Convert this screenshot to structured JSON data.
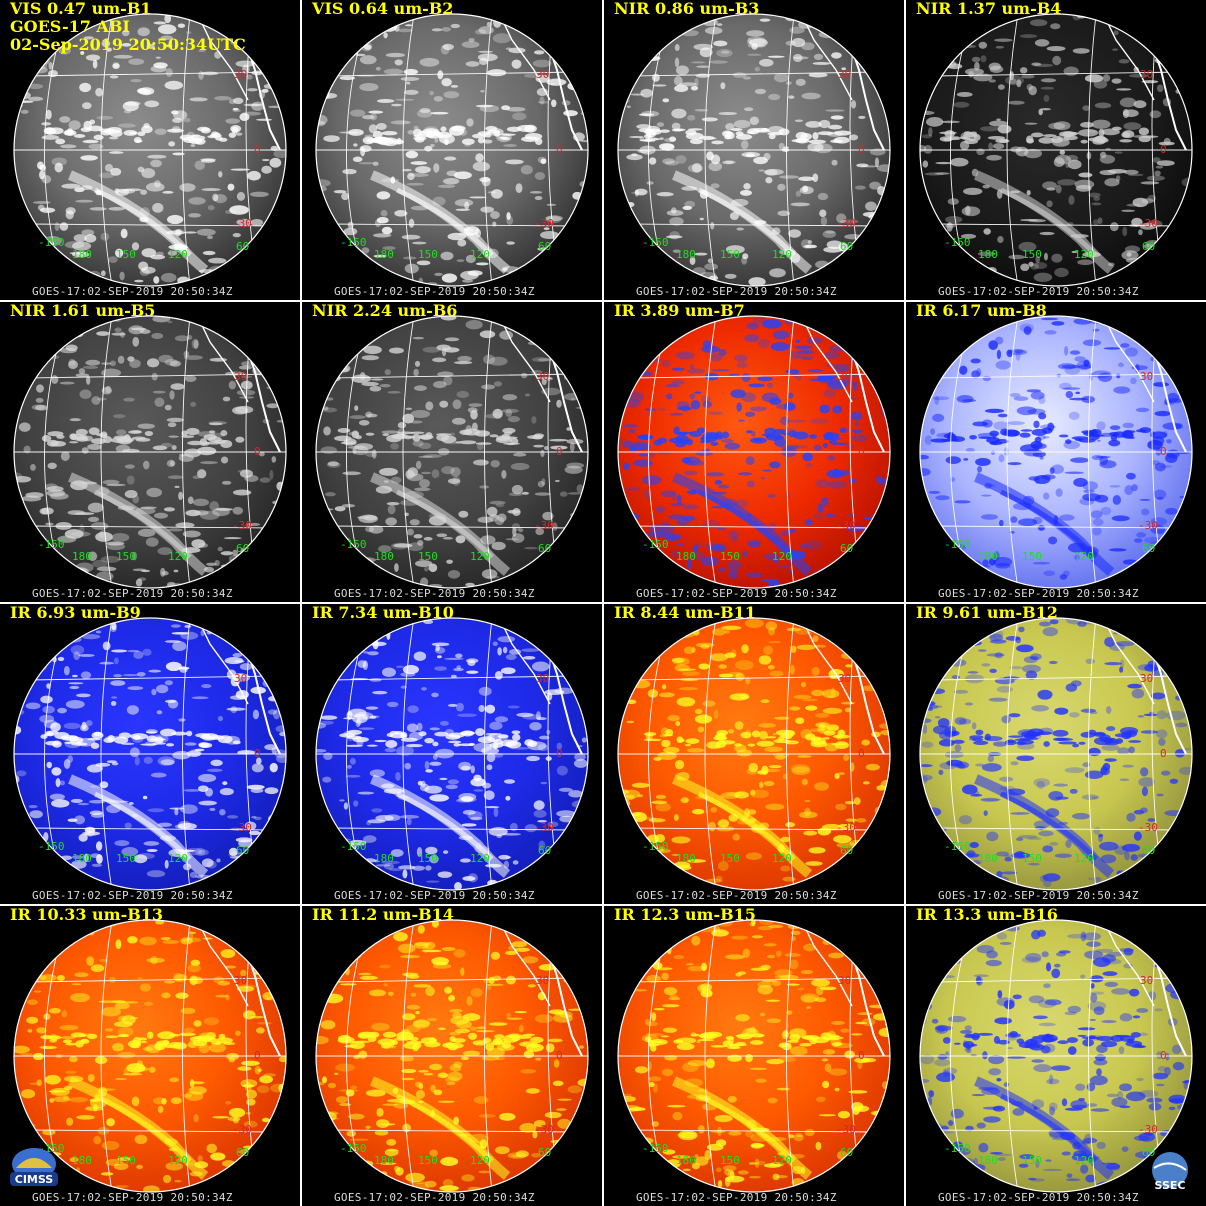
{
  "header": {
    "line2": "GOES-17 ABI",
    "line3": "02-Sep-2019 20:50:34UTC"
  },
  "timestamp": "GOES-17:02-SEP-2019 20:50:34Z",
  "lat_labels": [
    "30",
    "0",
    "-30"
  ],
  "lon_labels": [
    "-150",
    "180",
    "150",
    "120",
    "60"
  ],
  "panels": [
    {
      "label": "VIS 0.47 um-B1",
      "palette": "vis"
    },
    {
      "label": "VIS 0.64 um-B2",
      "palette": "vis"
    },
    {
      "label": "NIR 0.86 um-B3",
      "palette": "vis"
    },
    {
      "label": "NIR 1.37 um-B4",
      "palette": "dark"
    },
    {
      "label": "NIR 1.61 um-B5",
      "palette": "dim"
    },
    {
      "label": "NIR 2.24 um-B6",
      "palette": "dim"
    },
    {
      "label": "IR 3.89 um-B7",
      "palette": "red"
    },
    {
      "label": "IR 6.17 um-B8",
      "palette": "wv"
    },
    {
      "label": "IR 6.93 um-B9",
      "palette": "blue"
    },
    {
      "label": "IR 7.34 um-B10",
      "palette": "blue"
    },
    {
      "label": "IR 8.44 um-B11",
      "palette": "warm"
    },
    {
      "label": "IR 9.61 um-B12",
      "palette": "yellowblue"
    },
    {
      "label": "IR 10.33 um-B13",
      "palette": "warm"
    },
    {
      "label": "IR 11.2 um-B14",
      "palette": "warm"
    },
    {
      "label": "IR 12.3 um-B15",
      "palette": "warm"
    },
    {
      "label": "IR 13.3 um-B16",
      "palette": "yellowblue"
    }
  ],
  "logos": {
    "left": "CIMSS",
    "right": "SSEC"
  },
  "colors": {
    "label_yellow": "#ffff00",
    "lat_red": "#d42a2a",
    "lon_green": "#22dd22",
    "grid_white": "#ffffff",
    "stamp_gray": "#dcdcdc"
  }
}
